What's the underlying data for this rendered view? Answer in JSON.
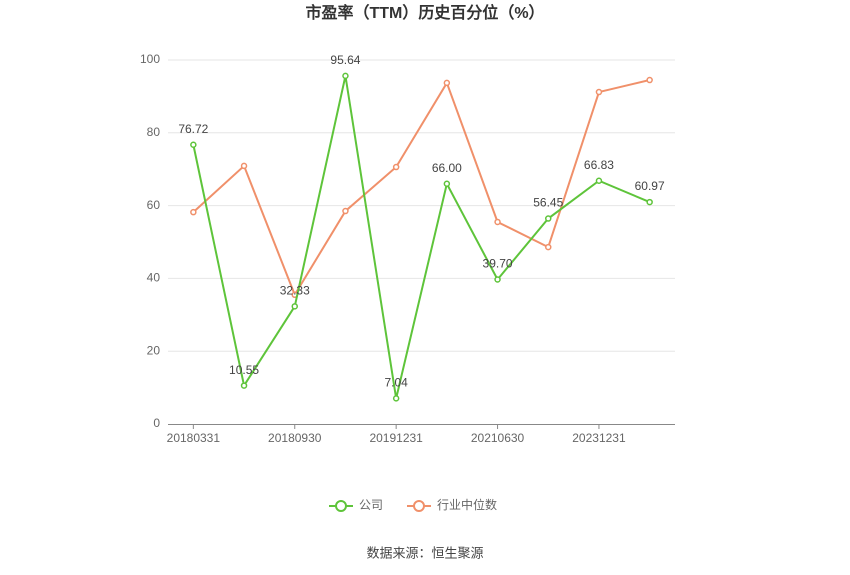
{
  "chart_data": {
    "type": "line",
    "title": "市盈率（TTM）历史百分位（%）",
    "categories": [
      "20180331",
      null,
      "20180930",
      null,
      "20191231",
      null,
      "20210630",
      null,
      "20231231",
      null
    ],
    "series": [
      {
        "name": "公司",
        "color": "#5ec43a",
        "values": [
          76.72,
          10.55,
          32.33,
          95.64,
          7.04,
          66.0,
          39.7,
          56.45,
          66.83,
          60.97
        ],
        "value_labels": [
          "76.72",
          "10.55",
          "32.33",
          "95.64",
          "7.04",
          "66.00",
          "39.70",
          "56.45",
          "66.83",
          "60.97"
        ]
      },
      {
        "name": "行业中位数",
        "color": "#f0906a",
        "values": [
          58.2,
          70.9,
          35.5,
          58.5,
          70.6,
          93.7,
          55.5,
          48.6,
          91.2,
          94.5
        ]
      }
    ],
    "ylim": [
      0,
      100
    ],
    "yticks": [
      0,
      20,
      40,
      60,
      80,
      100
    ],
    "grid": true,
    "source": "数据来源：恒生聚源"
  }
}
